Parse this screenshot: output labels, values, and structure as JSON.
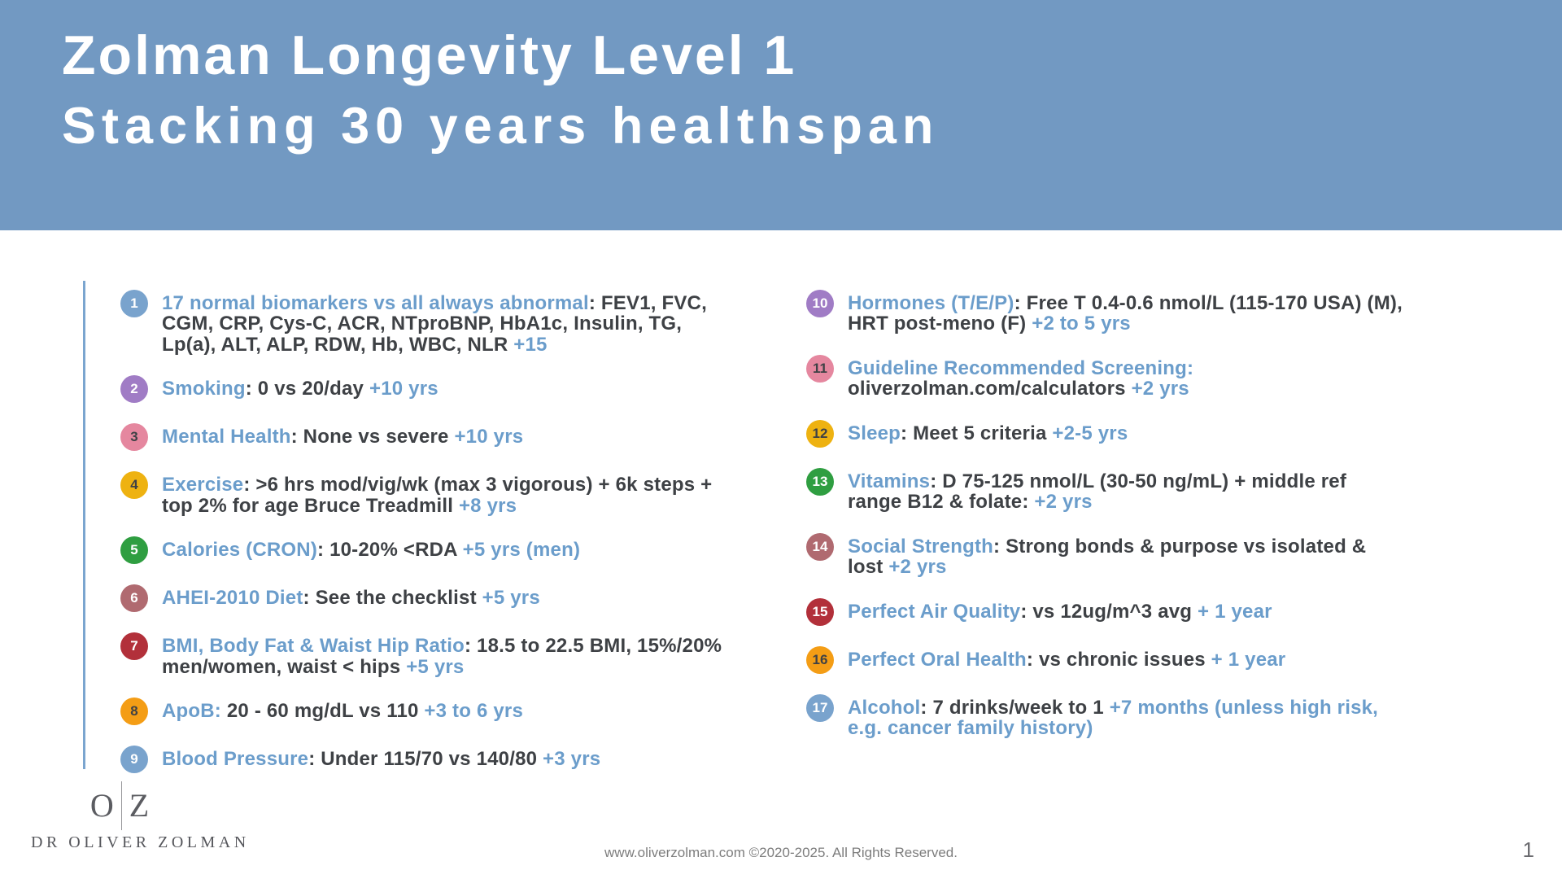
{
  "header": {
    "title": "Zolman Longevity Level 1",
    "subtitle": "Stacking 30 years healthspan",
    "bg_color": "#7299C2"
  },
  "colors": {
    "header_bg": "#7299C2",
    "accent_text_blue": "#6B9DCB",
    "dark_text": "#3E4145",
    "accent_line": "#7BA5CF"
  },
  "list": {
    "left_column": [
      {
        "number": "1",
        "circle_color": "#79A3CD",
        "number_color": "#FFFFFF",
        "segments": [
          {
            "style": "title",
            "text": "17 normal biomarkers vs all always abnormal"
          },
          {
            "style": "plain",
            "text": ": FEV1, FVC, CGM, CRP, Cys-C, ACR, NTproBNP, HbA1c, Insulin, TG, Lp(a), ALT, ALP, RDW, Hb, WBC, NLR "
          },
          {
            "style": "bonus",
            "text": "+15"
          }
        ]
      },
      {
        "number": "2",
        "circle_color": "#A07CC5",
        "number_color": "#FFFFFF",
        "segments": [
          {
            "style": "title",
            "text": "Smoking"
          },
          {
            "style": "plain",
            "text": ": 0 vs 20/day "
          },
          {
            "style": "bonus",
            "text": "+10 yrs"
          }
        ]
      },
      {
        "number": "3",
        "circle_color": "#E5879F",
        "number_color": "#3E4145",
        "segments": [
          {
            "style": "title",
            "text": "Mental Health"
          },
          {
            "style": "plain",
            "text": ": None vs severe "
          },
          {
            "style": "bonus",
            "text": "+10 yrs"
          }
        ]
      },
      {
        "number": "4",
        "circle_color": "#EEB211",
        "number_color": "#3E4145",
        "segments": [
          {
            "style": "title",
            "text": "Exercise"
          },
          {
            "style": "plain",
            "text": ": >6 hrs mod/vig/wk (max 3 vigorous) + 6k steps + top 2% for age Bruce Treadmill "
          },
          {
            "style": "bonus",
            "text": "+8 yrs"
          }
        ]
      },
      {
        "number": "5",
        "circle_color": "#2F9E41",
        "number_color": "#FFFFFF",
        "segments": [
          {
            "style": "title",
            "text": "Calories (CRON)"
          },
          {
            "style": "plain",
            "text": ": 10-20% <RDA "
          },
          {
            "style": "bonus",
            "text": "+5 yrs (men)"
          }
        ]
      },
      {
        "number": "6",
        "circle_color": "#B06A70",
        "number_color": "#FFFFFF",
        "segments": [
          {
            "style": "title",
            "text": "AHEI-2010 Diet"
          },
          {
            "style": "plain",
            "text": ": See the checklist "
          },
          {
            "style": "bonus",
            "text": "+5 yrs"
          }
        ]
      },
      {
        "number": "7",
        "circle_color": "#B2303A",
        "number_color": "#FFFFFF",
        "segments": [
          {
            "style": "title",
            "text": "BMI, Body Fat & Waist Hip Ratio"
          },
          {
            "style": "plain",
            "text": ": 18.5 to 22.5 BMI, 15%/20% men/women, waist < hips "
          },
          {
            "style": "bonus",
            "text": "+5 yrs"
          }
        ]
      },
      {
        "number": "8",
        "circle_color": "#F49D15",
        "number_color": "#3E4145",
        "segments": [
          {
            "style": "title",
            "text": "ApoB:"
          },
          {
            "style": "plain",
            "text": " 20 - 60 mg/dL vs 110 "
          },
          {
            "style": "bonus",
            "text": "+3 to 6 yrs"
          }
        ]
      },
      {
        "number": "9",
        "circle_color": "#79A3CD",
        "number_color": "#FFFFFF",
        "segments": [
          {
            "style": "title",
            "text": "Blood Pressure"
          },
          {
            "style": "plain",
            "text": ": Under 115/70 vs 140/80 "
          },
          {
            "style": "bonus",
            "text": "+3 yrs"
          }
        ]
      }
    ],
    "right_column": [
      {
        "number": "10",
        "circle_color": "#A07CC5",
        "number_color": "#FFFFFF",
        "segments": [
          {
            "style": "title",
            "text": "Hormones (T/E/P)"
          },
          {
            "style": "plain",
            "text": ": Free T 0.4-0.6 nmol/L (115-170 USA) (M), HRT post-meno (F) "
          },
          {
            "style": "bonus",
            "text": "+2 to 5 yrs"
          }
        ]
      },
      {
        "number": "11",
        "circle_color": "#E5879F",
        "number_color": "#3E4145",
        "segments": [
          {
            "style": "title",
            "text": "Guideline Recommended Screening:"
          },
          {
            "style": "plain",
            "text": " oliverzolman.com/calculators "
          },
          {
            "style": "bonus",
            "text": "+2 yrs"
          }
        ]
      },
      {
        "number": "12",
        "circle_color": "#EEB211",
        "number_color": "#3E4145",
        "segments": [
          {
            "style": "title",
            "text": "Sleep"
          },
          {
            "style": "plain",
            "text": ": Meet 5 criteria "
          },
          {
            "style": "bonus",
            "text": "+2-5 yrs"
          }
        ]
      },
      {
        "number": "13",
        "circle_color": "#2F9E41",
        "number_color": "#FFFFFF",
        "segments": [
          {
            "style": "title",
            "text": "Vitamins"
          },
          {
            "style": "plain",
            "text": ": D 75-125 nmol/L (30-50 ng/mL) + middle ref range B12 & folate: "
          },
          {
            "style": "bonus",
            "text": "+2 yrs"
          }
        ]
      },
      {
        "number": "14",
        "circle_color": "#B06A70",
        "number_color": "#FFFFFF",
        "segments": [
          {
            "style": "title",
            "text": "Social Strength"
          },
          {
            "style": "plain",
            "text": ": Strong bonds & purpose vs isolated & lost "
          },
          {
            "style": "bonus",
            "text": "+2 yrs"
          }
        ]
      },
      {
        "number": "15",
        "circle_color": "#B2303A",
        "number_color": "#FFFFFF",
        "segments": [
          {
            "style": "title",
            "text": "Perfect Air Quality"
          },
          {
            "style": "plain",
            "text": ": vs 12ug/m^3 avg "
          },
          {
            "style": "bonus",
            "text": "+ 1 year"
          }
        ]
      },
      {
        "number": "16",
        "circle_color": "#F49D15",
        "number_color": "#3E4145",
        "segments": [
          {
            "style": "title",
            "text": "Perfect Oral Health"
          },
          {
            "style": "plain",
            "text": ": vs chronic issues "
          },
          {
            "style": "bonus",
            "text": "+ 1 year"
          }
        ]
      },
      {
        "number": "17",
        "circle_color": "#79A3CD",
        "number_color": "#FFFFFF",
        "segments": [
          {
            "style": "title",
            "text": "Alcohol"
          },
          {
            "style": "plain",
            "text": ": 7 drinks/week to 1 "
          },
          {
            "style": "bonus",
            "text": "+7 months (unless high risk, e.g. cancer family history)"
          }
        ]
      }
    ]
  },
  "footer": {
    "logo": {
      "left": "O",
      "right": "Z",
      "name": "DR OLIVER ZOLMAN"
    },
    "copyright": "www.oliverzolman.com ©2020-2025. All Rights Reserved.",
    "page_number": "1"
  }
}
